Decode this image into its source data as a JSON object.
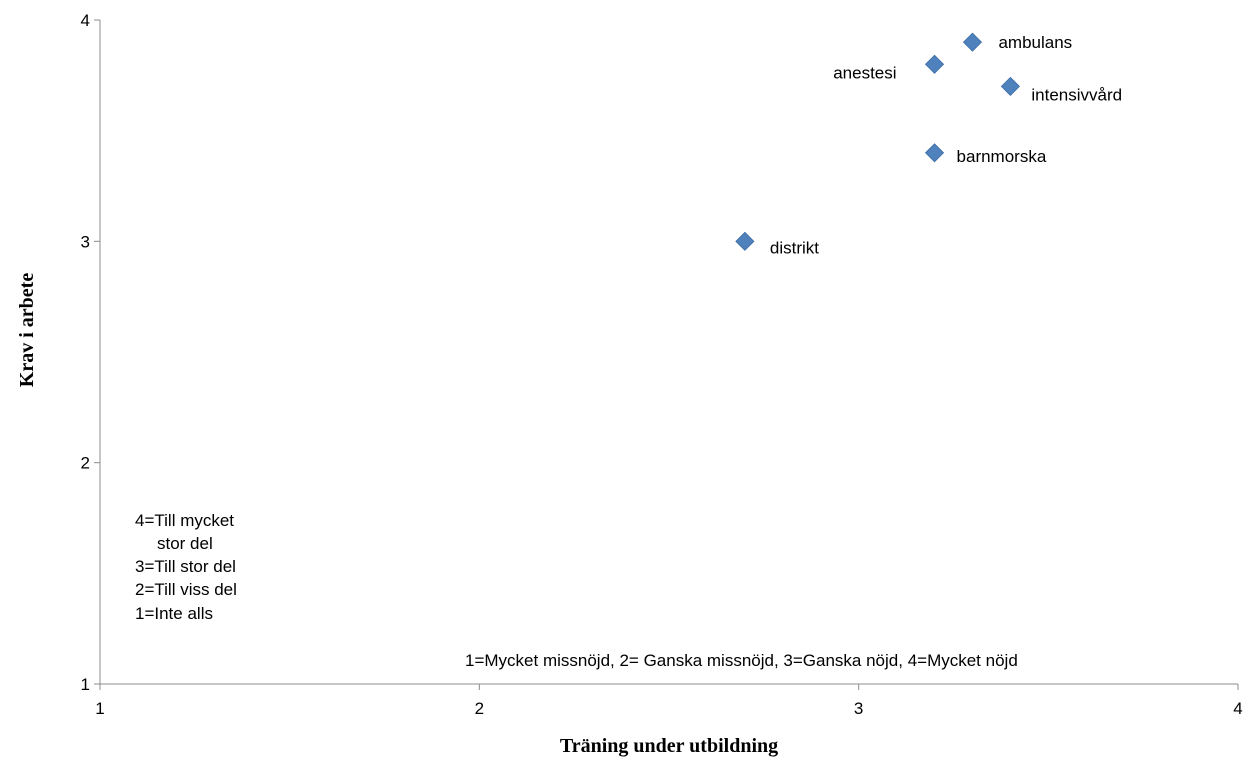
{
  "chart_data": {
    "type": "scatter",
    "title": "",
    "xlabel": "Träning under utbildning",
    "ylabel": "Krav i arbete",
    "xlim": [
      1,
      4
    ],
    "ylim": [
      1,
      4
    ],
    "xticks": [
      "1",
      "2",
      "3",
      "4"
    ],
    "yticks": [
      "1",
      "2",
      "3",
      "4"
    ],
    "grid": false,
    "marker": "diamond",
    "marker_color": "#4F81BD",
    "points": [
      {
        "label": "ambulans",
        "x": 3.3,
        "y": 3.9
      },
      {
        "label": "anestesi",
        "x": 3.2,
        "y": 3.8
      },
      {
        "label": "intensivvård",
        "x": 3.4,
        "y": 3.7
      },
      {
        "label": "barnmorska",
        "x": 3.2,
        "y": 3.4
      },
      {
        "label": "distrikt",
        "x": 2.7,
        "y": 3.0
      }
    ],
    "annotations": {
      "y_scale_lines": [
        "4=Till mycket",
        "stor del",
        "3=Till stor del",
        "2=Till viss del",
        "1=Inte alls"
      ],
      "x_scale": "1=Mycket missnöjd, 2= Ganska missnöjd, 3=Ganska nöjd, 4=Mycket nöjd"
    }
  }
}
